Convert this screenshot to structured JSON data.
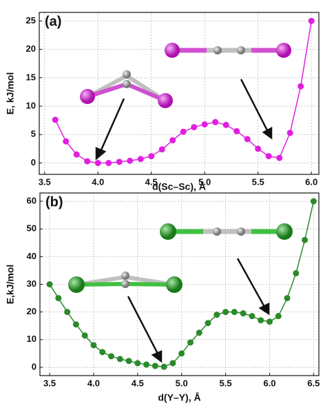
{
  "chart_data": [
    {
      "type": "line",
      "annotation": "(a)",
      "xlabel": "d(Sc–Sc), Å",
      "ylabel": "E, kJ/mol",
      "xlim": [
        3.45,
        6.07
      ],
      "ylim": [
        -2,
        26.5
      ],
      "xticks": [
        3.5,
        {
          "value": 4,
          "label": "4.0"
        },
        4.5,
        {
          "value": 5,
          "label": "5.0"
        },
        5.5,
        {
          "value": 6,
          "label": "6.0"
        }
      ],
      "yticks": [
        0,
        5,
        10,
        15,
        20,
        25
      ],
      "grid": true,
      "series": [
        {
          "color": "#e01fe0",
          "x": [
            3.6,
            3.7,
            3.8,
            3.9,
            4.0,
            4.1,
            4.2,
            4.3,
            4.4,
            4.5,
            4.6,
            4.7,
            4.8,
            4.9,
            5.0,
            5.1,
            5.2,
            5.3,
            5.4,
            5.5,
            5.6,
            5.7,
            5.8,
            5.9,
            6.0
          ],
          "values": [
            7.6,
            3.8,
            1.5,
            0.3,
            0.0,
            0.0,
            0.2,
            0.4,
            0.7,
            1.2,
            2.4,
            4.0,
            5.5,
            6.3,
            6.8,
            7.2,
            6.7,
            5.6,
            4.2,
            2.5,
            1.2,
            0.9,
            5.3,
            13.5,
            25
          ]
        }
      ]
    },
    {
      "type": "line",
      "annotation": "(b)",
      "xlabel": "d(Y–Y), Å",
      "ylabel": "E,kJ/mol",
      "xlim": [
        3.39,
        6.56
      ],
      "ylim": [
        -3,
        63
      ],
      "xticks": [
        3.5,
        {
          "value": 4,
          "label": "4.0"
        },
        4.5,
        {
          "value": 5,
          "label": "5.0"
        },
        5.5,
        {
          "value": 6,
          "label": "6.0"
        },
        6.5
      ],
      "yticks": [
        0,
        10,
        20,
        30,
        40,
        50,
        60
      ],
      "grid": true,
      "series": [
        {
          "color": "#2a8a2a",
          "x": [
            3.5,
            3.6,
            3.7,
            3.8,
            3.9,
            4.0,
            4.1,
            4.2,
            4.3,
            4.4,
            4.5,
            4.6,
            4.7,
            4.8,
            4.9,
            5.0,
            5.1,
            5.2,
            5.3,
            5.4,
            5.5,
            5.6,
            5.7,
            5.8,
            5.9,
            6.0,
            6.1,
            6.2,
            6.3,
            6.4,
            6.5
          ],
          "values": [
            30,
            25,
            20,
            15.5,
            11.5,
            8,
            5.5,
            4,
            3,
            2.3,
            1.5,
            1,
            0.5,
            0.2,
            1.5,
            5,
            9,
            12.5,
            16,
            19,
            20,
            20,
            19.5,
            18.5,
            17,
            16.5,
            18.5,
            25,
            34,
            46,
            60
          ]
        }
      ]
    }
  ]
}
